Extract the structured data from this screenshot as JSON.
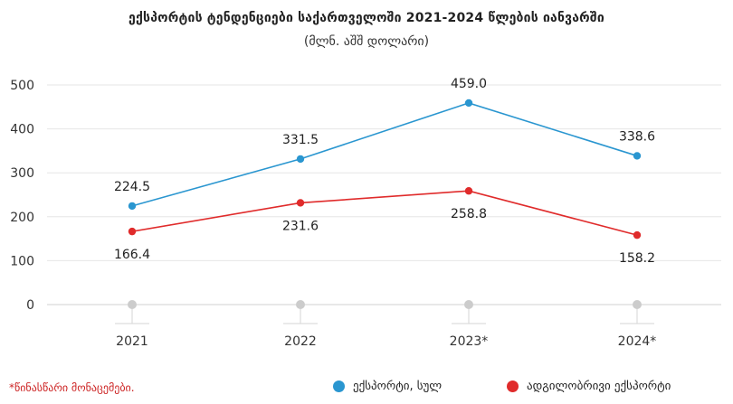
{
  "chart_data": {
    "type": "line",
    "title": "ექსპორტის ტენდენციები საქართველოში 2021-2024 წლების იანვარში",
    "subtitle": "(მლნ. აშშ დოლარი)",
    "categories": [
      "2021",
      "2022",
      "2023*",
      "2024*"
    ],
    "ylim": [
      0,
      500
    ],
    "yticks": [
      0,
      100,
      200,
      300,
      400,
      500
    ],
    "grid": true,
    "legend_position": "bottom",
    "series": [
      {
        "name": "ექსპორტი, სულ",
        "values": [
          224.5,
          331.5,
          459.0,
          338.6
        ],
        "labels": [
          "224.5",
          "331.5",
          "459.0",
          "338.6"
        ],
        "color": "#2a96d0",
        "label_position": "above"
      },
      {
        "name": "ადგილობრივი ექსპორტი",
        "values": [
          166.4,
          231.6,
          258.8,
          158.2
        ],
        "labels": [
          "166.4",
          "231.6",
          "258.8",
          "158.2"
        ],
        "color": "#e02b2b",
        "label_position": "below"
      }
    ],
    "note": "*წინასწარი მონაცემები."
  },
  "colors": {
    "grid": "#e6e6e6",
    "axis": "#d0d0d0",
    "baseline_marker": "#cccccc"
  }
}
